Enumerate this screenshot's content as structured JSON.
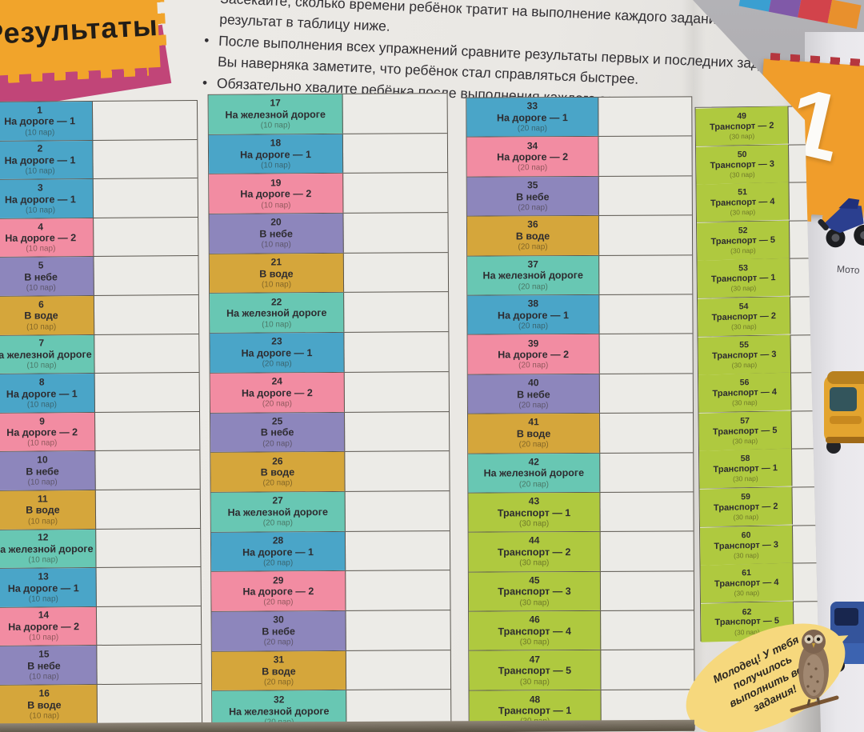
{
  "page_title": "Результаты",
  "instructions": [
    {
      "lines": [
        "Засекайте, сколько времени ребёнок тратит на выполнение каждого задания, и заносите",
        "результат в таблицу ниже."
      ]
    },
    {
      "lines": [
        "После выполнения всех упражнений сравните результаты первых и последних заданий.",
        "Вы наверняка заметите, что ребёнок стал справляться быстрее."
      ]
    },
    {
      "lines": [
        "Обязательно хвалите ребёнка после выполнения каждого задания."
      ]
    }
  ],
  "palette": {
    "road1": "#4AA5C8",
    "road2": "#F28CA2",
    "sky": "#8D86BC",
    "water": "#D5A63B",
    "rail": "#68C7B3",
    "transport": "#AFC93F",
    "title_tab": "#F1A42B",
    "title_shadow": "#C14578",
    "page_tab": "#F09D2B",
    "badge": "#F6D87D"
  },
  "mini_strip_colors": [
    "#3A9FD1",
    "#8059A8",
    "#D2434B",
    "#E8902D"
  ],
  "table": {
    "columns": [
      {
        "id": "col-a",
        "rows": [
          [
            "1",
            "На дороге — 1",
            "(10 пар)",
            "road1"
          ],
          [
            "2",
            "На дороге — 1",
            "(10 пар)",
            "road1"
          ],
          [
            "3",
            "На дороге — 1",
            "(10 пар)",
            "road1"
          ],
          [
            "4",
            "На дороге — 2",
            "(10 пар)",
            "road2"
          ],
          [
            "5",
            "В небе",
            "(10 пар)",
            "sky"
          ],
          [
            "6",
            "В воде",
            "(10 пар)",
            "water"
          ],
          [
            "7",
            "На железной дороге",
            "(10 пар)",
            "rail"
          ],
          [
            "8",
            "На дороге — 1",
            "(10 пар)",
            "road1"
          ],
          [
            "9",
            "На дороге — 2",
            "(10 пар)",
            "road2"
          ],
          [
            "10",
            "В небе",
            "(10 пар)",
            "sky"
          ],
          [
            "11",
            "В воде",
            "(10 пар)",
            "water"
          ],
          [
            "12",
            "На железной дороге",
            "(10 пар)",
            "rail"
          ],
          [
            "13",
            "На дороге — 1",
            "(10 пар)",
            "road1"
          ],
          [
            "14",
            "На дороге — 2",
            "(10 пар)",
            "road2"
          ],
          [
            "15",
            "В небе",
            "(10 пар)",
            "sky"
          ],
          [
            "16",
            "В воде",
            "(10 пар)",
            "water"
          ]
        ]
      },
      {
        "id": "col-b",
        "rows": [
          [
            "17",
            "На железной дороге",
            "(10 пар)",
            "rail"
          ],
          [
            "18",
            "На дороге — 1",
            "(10 пар)",
            "road1"
          ],
          [
            "19",
            "На дороге — 2",
            "(10 пар)",
            "road2"
          ],
          [
            "20",
            "В небе",
            "(10 пар)",
            "sky"
          ],
          [
            "21",
            "В воде",
            "(10 пар)",
            "water"
          ],
          [
            "22",
            "На железной дороге",
            "(10 пар)",
            "rail"
          ],
          [
            "23",
            "На дороге — 1",
            "(20 пар)",
            "road1"
          ],
          [
            "24",
            "На дороге — 2",
            "(20 пар)",
            "road2"
          ],
          [
            "25",
            "В небе",
            "(20 пар)",
            "sky"
          ],
          [
            "26",
            "В воде",
            "(20 пар)",
            "water"
          ],
          [
            "27",
            "На железной дороге",
            "(20 пар)",
            "rail"
          ],
          [
            "28",
            "На дороге — 1",
            "(20 пар)",
            "road1"
          ],
          [
            "29",
            "На дороге — 2",
            "(20 пар)",
            "road2"
          ],
          [
            "30",
            "В небе",
            "(20 пар)",
            "sky"
          ],
          [
            "31",
            "В воде",
            "(20 пар)",
            "water"
          ],
          [
            "32",
            "На железной дороге",
            "(20 пар)",
            "rail"
          ]
        ]
      },
      {
        "id": "col-c",
        "rows": [
          [
            "33",
            "На дороге — 1",
            "(20 пар)",
            "road1"
          ],
          [
            "34",
            "На дороге — 2",
            "(20 пар)",
            "road2"
          ],
          [
            "35",
            "В небе",
            "(20 пар)",
            "sky"
          ],
          [
            "36",
            "В воде",
            "(20 пар)",
            "water"
          ],
          [
            "37",
            "На железной дороге",
            "(20 пар)",
            "rail"
          ],
          [
            "38",
            "На дороге — 1",
            "(20 пар)",
            "road1"
          ],
          [
            "39",
            "На дороге — 2",
            "(20 пар)",
            "road2"
          ],
          [
            "40",
            "В небе",
            "(20 пар)",
            "sky"
          ],
          [
            "41",
            "В воде",
            "(20 пар)",
            "water"
          ],
          [
            "42",
            "На железной дороге",
            "(20 пар)",
            "rail"
          ],
          [
            "43",
            "Транспорт — 1",
            "(30 пар)",
            "transport"
          ],
          [
            "44",
            "Транспорт — 2",
            "(30 пар)",
            "transport"
          ],
          [
            "45",
            "Транспорт — 3",
            "(30 пар)",
            "transport"
          ],
          [
            "46",
            "Транспорт — 4",
            "(30 пар)",
            "transport"
          ],
          [
            "47",
            "Транспорт — 5",
            "(30 пар)",
            "transport"
          ],
          [
            "48",
            "Транспорт — 1",
            "(30 пар)",
            "transport"
          ]
        ]
      },
      {
        "id": "col-d",
        "rows": [
          [
            "49",
            "Транспорт — 2",
            "(30 пар)",
            "transport"
          ],
          [
            "50",
            "Транспорт — 3",
            "(30 пар)",
            "transport"
          ],
          [
            "51",
            "Транспорт — 4",
            "(30 пар)",
            "transport"
          ],
          [
            "52",
            "Транспорт — 5",
            "(30 пар)",
            "transport"
          ],
          [
            "53",
            "Транспорт — 1",
            "(30 пар)",
            "transport"
          ],
          [
            "54",
            "Транспорт — 2",
            "(30 пар)",
            "transport"
          ],
          [
            "55",
            "Транспорт — 3",
            "(30 пар)",
            "transport"
          ],
          [
            "56",
            "Транспорт — 4",
            "(30 пар)",
            "transport"
          ],
          [
            "57",
            "Транспорт — 5",
            "(30 пар)",
            "transport"
          ],
          [
            "58",
            "Транспорт — 1",
            "(30 пар)",
            "transport"
          ],
          [
            "59",
            "Транспорт — 2",
            "(30 пар)",
            "transport"
          ],
          [
            "60",
            "Транспорт — 3",
            "(30 пар)",
            "transport"
          ],
          [
            "61",
            "Транспорт — 4",
            "(30 пар)",
            "transport"
          ],
          [
            "62",
            "Транспорт — 5",
            "(30 пар)",
            "transport"
          ]
        ]
      }
    ]
  },
  "praise_badge": {
    "text": "Молодец! У тебя получилось выполнить все задания!"
  },
  "next_page": {
    "page_number": "1",
    "motorcycle_caption": "Мото"
  }
}
